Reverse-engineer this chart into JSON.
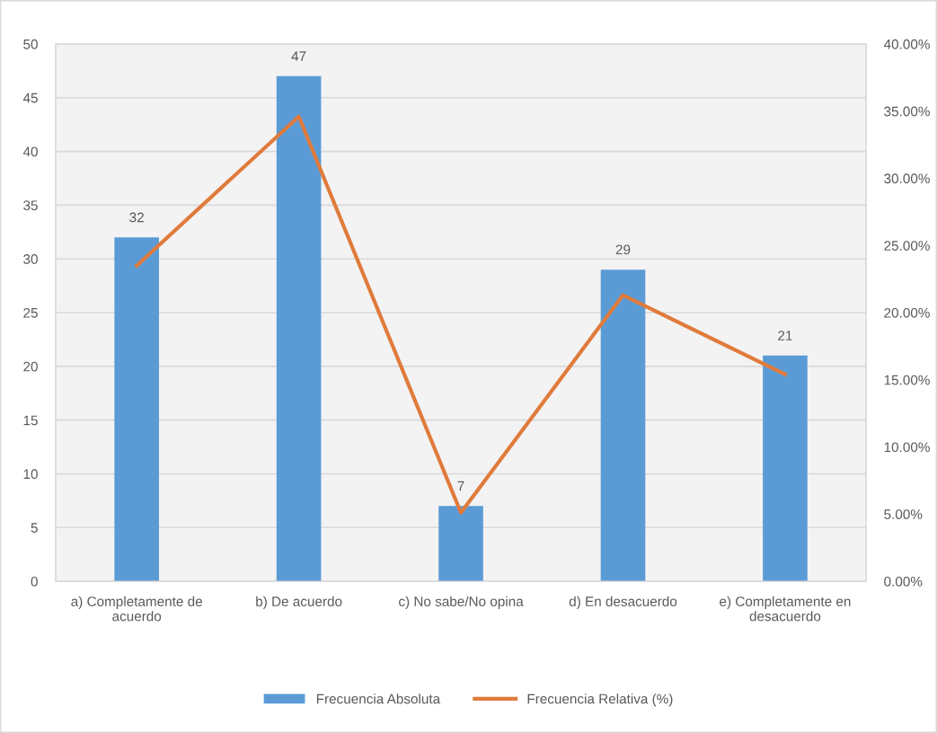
{
  "chart_data": {
    "type": "bar",
    "categories": [
      "a) Completamente de\nacuerdo",
      "b) De acuerdo",
      "c) No sabe/No opina",
      "d) En desacuerdo",
      "e) Completamente en\ndesacuerdo"
    ],
    "series": [
      {
        "name": "Frecuencia Absoluta",
        "color": "#5b9bd5",
        "values": [
          32,
          47,
          7,
          29,
          21
        ],
        "value_labels": [
          "32",
          "47",
          "7",
          "29",
          "21"
        ]
      },
      {
        "name": "Frecuencia Relativa (%)",
        "type": "line",
        "axis": "y2",
        "color": "#e07b3c",
        "values": [
          23.5,
          34.6,
          5.1,
          21.3,
          15.4
        ]
      }
    ],
    "ylim": [
      0,
      50
    ],
    "yticks": [
      0,
      5,
      10,
      15,
      20,
      25,
      30,
      35,
      40,
      45,
      50
    ],
    "y2lim": [
      0,
      40
    ],
    "y2ticks": [
      {
        "value": 0,
        "label": "0.00%"
      },
      {
        "value": 5,
        "label": "5.00%"
      },
      {
        "value": 10,
        "label": "10.00%"
      },
      {
        "value": 15,
        "label": "15.00%"
      },
      {
        "value": 20,
        "label": "20.00%"
      },
      {
        "value": 25,
        "label": "25.00%"
      },
      {
        "value": 30,
        "label": "30.00%"
      },
      {
        "value": 35,
        "label": "35.00%"
      },
      {
        "value": 40,
        "label": "40.00%"
      }
    ],
    "grid": "y",
    "legend": "bottom"
  }
}
